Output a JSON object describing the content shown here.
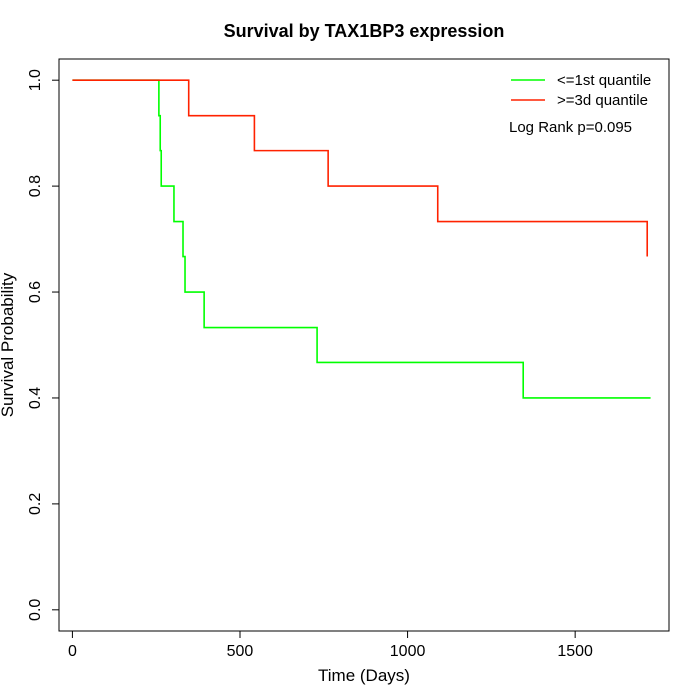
{
  "chart_data": {
    "type": "line",
    "title": "Survival by TAX1BP3 expression",
    "xlabel": "Time (Days)",
    "ylabel": "Survival Probability",
    "xlim": [
      -40,
      1780
    ],
    "ylim": [
      -0.04,
      1.04
    ],
    "x_ticks": [
      0,
      500,
      1000,
      1500
    ],
    "y_ticks": [
      0.0,
      0.2,
      0.4,
      0.6,
      0.8,
      1.0
    ],
    "x_tick_labels": [
      "0",
      "500",
      "1000",
      "1500"
    ],
    "y_tick_labels": [
      "0.0",
      "0.2",
      "0.4",
      "0.6",
      "0.8",
      "1.0"
    ],
    "grid": false,
    "legend_position": "top-right",
    "annotation": "Log Rank p=0.095",
    "series": [
      {
        "name": "<=1st quantile",
        "color": "#00ff00",
        "step": true,
        "x": [
          0,
          255,
          258,
          262,
          265,
          303,
          330,
          336,
          393,
          730,
          1345,
          1725
        ],
        "y": [
          1.0,
          1.0,
          0.933,
          0.867,
          0.8,
          0.733,
          0.667,
          0.6,
          0.533,
          0.467,
          0.4,
          0.4
        ]
      },
      {
        "name": ">=3d quantile",
        "color": "#ff2200",
        "step": true,
        "x": [
          0,
          328,
          347,
          543,
          763,
          1090,
          1715
        ],
        "y": [
          1.0,
          1.0,
          0.933,
          0.867,
          0.8,
          0.733,
          0.667
        ]
      }
    ]
  }
}
